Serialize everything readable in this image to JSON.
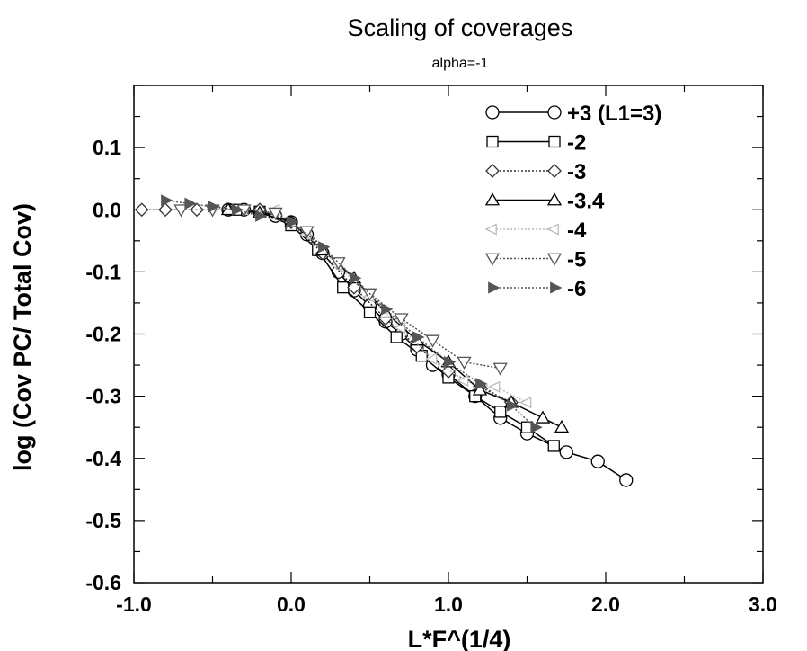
{
  "chart_data": {
    "type": "line",
    "title": "Scaling of coverages",
    "subtitle": "alpha=-1",
    "xlabel": "L*F^(1/4)",
    "ylabel": "log (Cov PC/ Total Cov)",
    "xlim": [
      -1.0,
      3.0
    ],
    "ylim": [
      -0.6,
      0.2
    ],
    "xticks": [
      "-1.0",
      "0.0",
      "1.0",
      "2.0",
      "3.0"
    ],
    "yticks": [
      "0.1",
      "0.0",
      "-0.1",
      "-0.2",
      "-0.3",
      "-0.4",
      "-0.5",
      "-0.6"
    ],
    "grid": false,
    "legend_position": "top-right",
    "series": [
      {
        "name": "+3 (L1=3)",
        "marker": "circle",
        "color": "#000000",
        "dash": "",
        "x": [
          -0.4,
          -0.3,
          -0.2,
          -0.1,
          0.0,
          0.1,
          0.2,
          0.3,
          0.4,
          0.5,
          0.6,
          0.7,
          0.8,
          0.9,
          1.0,
          1.17,
          1.33,
          1.5,
          1.75,
          1.95,
          2.13
        ],
        "y": [
          0.0,
          0.0,
          -0.003,
          -0.01,
          -0.02,
          -0.04,
          -0.07,
          -0.1,
          -0.13,
          -0.155,
          -0.18,
          -0.2,
          -0.225,
          -0.25,
          -0.265,
          -0.3,
          -0.335,
          -0.36,
          -0.39,
          -0.405,
          -0.435
        ]
      },
      {
        "name": "-2",
        "marker": "square",
        "color": "#000000",
        "dash": "",
        "x": [
          -0.35,
          -0.2,
          0.0,
          0.17,
          0.33,
          0.5,
          0.67,
          0.83,
          1.0,
          1.17,
          1.33,
          1.5,
          1.67
        ],
        "y": [
          0.0,
          -0.003,
          -0.025,
          -0.065,
          -0.125,
          -0.165,
          -0.205,
          -0.235,
          -0.27,
          -0.3,
          -0.325,
          -0.35,
          -0.38
        ]
      },
      {
        "name": "-3",
        "marker": "diamond",
        "color": "#333333",
        "dash": "2,2",
        "x": [
          -0.95,
          -0.8,
          -0.6,
          -0.4,
          -0.2,
          0.0,
          0.2,
          0.4,
          0.6,
          0.8,
          1.0,
          1.2,
          1.4
        ],
        "y": [
          0.0,
          0.0,
          0.0,
          0.0,
          0.0,
          -0.02,
          -0.07,
          -0.125,
          -0.175,
          -0.22,
          -0.26,
          -0.285,
          -0.31
        ]
      },
      {
        "name": "-3.4",
        "marker": "triangle-up",
        "color": "#000000",
        "dash": "",
        "x": [
          -0.4,
          -0.2,
          0.0,
          0.2,
          0.4,
          0.6,
          0.8,
          1.0,
          1.2,
          1.4,
          1.6,
          1.72
        ],
        "y": [
          0.0,
          -0.005,
          -0.02,
          -0.065,
          -0.11,
          -0.165,
          -0.21,
          -0.245,
          -0.29,
          -0.31,
          -0.335,
          -0.35
        ]
      },
      {
        "name": "-4",
        "marker": "triangle-left",
        "color": "#bbbbbb",
        "dash": "2,2",
        "x": [
          -0.3,
          -0.1,
          0.1,
          0.3,
          0.5,
          0.7,
          0.9,
          1.1,
          1.3,
          1.5
        ],
        "y": [
          0.0,
          0.0,
          -0.04,
          -0.09,
          -0.14,
          -0.19,
          -0.24,
          -0.275,
          -0.285,
          -0.31
        ]
      },
      {
        "name": "-5",
        "marker": "triangle-down",
        "color": "#555555",
        "dash": "2,2",
        "x": [
          -0.7,
          -0.5,
          -0.3,
          -0.1,
          0.1,
          0.3,
          0.5,
          0.7,
          0.9,
          1.1,
          1.33
        ],
        "y": [
          0.0,
          0.0,
          0.0,
          -0.005,
          -0.035,
          -0.085,
          -0.135,
          -0.175,
          -0.21,
          -0.245,
          -0.255
        ]
      },
      {
        "name": "-6",
        "marker": "triangle-right-filled",
        "color": "#555555",
        "dash": "2,2",
        "x": [
          -0.8,
          -0.65,
          -0.5,
          -0.35,
          -0.2,
          0.0,
          0.2,
          0.4,
          0.6,
          0.8,
          1.0,
          1.2,
          1.4,
          1.55
        ],
        "y": [
          0.015,
          0.01,
          0.005,
          0.0,
          -0.01,
          -0.02,
          -0.06,
          -0.11,
          -0.16,
          -0.205,
          -0.245,
          -0.28,
          -0.315,
          -0.35
        ]
      }
    ]
  }
}
